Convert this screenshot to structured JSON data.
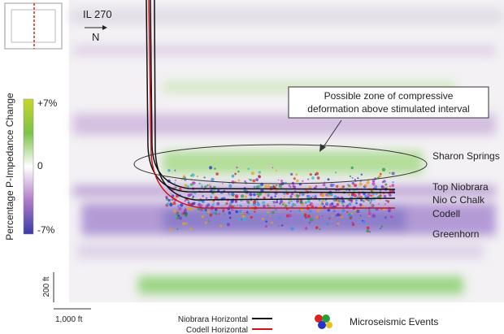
{
  "section": {
    "inline": "IL 270",
    "direction": "N"
  },
  "colorbar": {
    "title": "Percentage P-Impedance Change",
    "labels": [
      "+7%",
      "0",
      "-7%"
    ]
  },
  "callout": {
    "lines": [
      "Possible zone of compressive",
      "deformation above stimulated interval"
    ]
  },
  "horizons": [
    "Sharon Springs",
    "Top Niobrara",
    "Nio C Chalk",
    "Codell",
    "Greenhorn"
  ],
  "scale": {
    "vertical": "200 ft",
    "horizontal": "1,000 ft"
  },
  "legend": {
    "wells": [
      "Niobrara Horizontal",
      "Codell Horizontal"
    ],
    "events": "Microseismic Events"
  }
}
